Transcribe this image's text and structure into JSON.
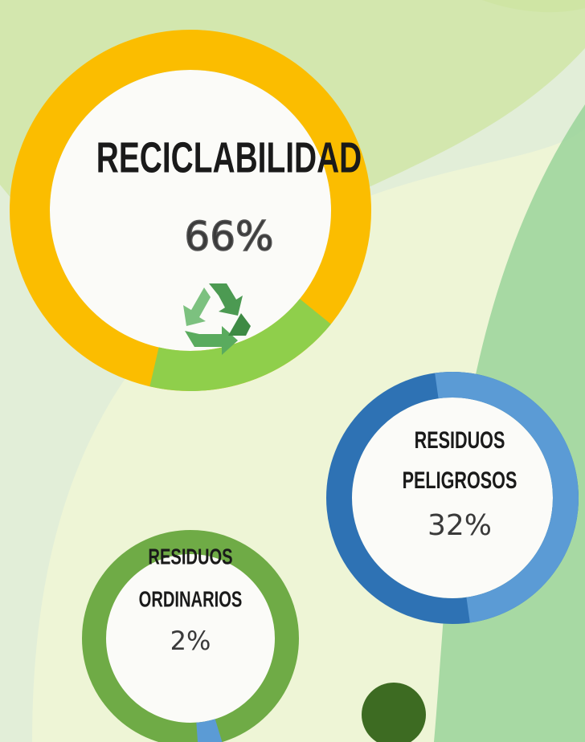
{
  "items": [
    {
      "title_lines": [
        "RECICLABILIDAD"
      ],
      "value": "66%"
    },
    {
      "title_lines": [
        "RESIDUOS",
        "PELIGROSOS"
      ],
      "value": "32%"
    },
    {
      "title_lines": [
        "RESIDUOS",
        "ORDINARIOS"
      ],
      "value": "2%"
    }
  ]
}
